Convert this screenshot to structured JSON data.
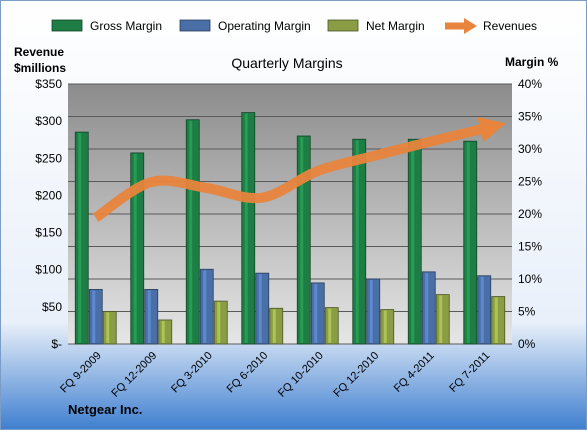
{
  "chart_data": {
    "type": "bar",
    "title": "Quarterly Margins",
    "footer": "Netgear Inc.",
    "left_axis_title": [
      "Revenue",
      "$millions"
    ],
    "right_axis_title": "Margin %",
    "categories": [
      "FQ 9-2009",
      "FQ 12-2009",
      "FQ 3-2010",
      "FQ 6-2010",
      "FQ 10-2010",
      "FQ 12-2010",
      "FQ 4-2011",
      "FQ 7-2011"
    ],
    "left_axis": {
      "min": 0,
      "max": 350,
      "tick_labels": [
        "$-",
        "$50",
        "$100",
        "$150",
        "$200",
        "$250",
        "$300",
        "$350"
      ]
    },
    "right_axis": {
      "min": 0,
      "max": 40,
      "tick_labels": [
        "0%",
        "5%",
        "10%",
        "15%",
        "20%",
        "25%",
        "30%",
        "35%",
        "40%"
      ]
    },
    "series": [
      {
        "name": "Gross Margin",
        "axis": "right",
        "kind": "bar",
        "color": "#1e7d45",
        "values": [
          32.6,
          29.4,
          34.5,
          35.6,
          32.0,
          31.5,
          31.5,
          31.2
        ]
      },
      {
        "name": "Operating Margin",
        "axis": "right",
        "kind": "bar",
        "color": "#4a6fa6",
        "values": [
          8.4,
          8.4,
          11.5,
          10.9,
          9.4,
          10.0,
          11.1,
          10.5
        ]
      },
      {
        "name": "Net Margin",
        "axis": "right",
        "kind": "bar",
        "color": "#8a9d45",
        "values": [
          5.0,
          3.7,
          6.6,
          5.5,
          5.6,
          5.3,
          7.6,
          7.3
        ]
      },
      {
        "name": "Revenues",
        "axis": "left",
        "kind": "line",
        "color": "#e8843c",
        "values": [
          170,
          218,
          210,
          197,
          233,
          253,
          272,
          290
        ]
      }
    ],
    "grid": true,
    "legend": "top"
  }
}
